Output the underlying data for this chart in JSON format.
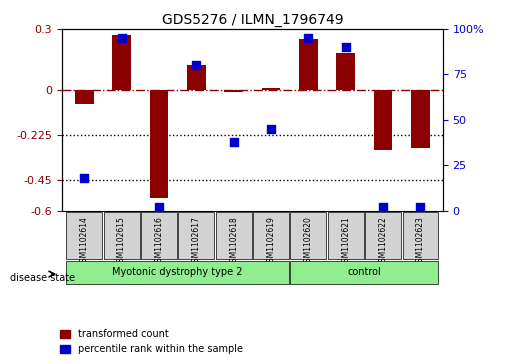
{
  "title": "GDS5276 / ILMN_1796749",
  "samples": [
    "GSM1102614",
    "GSM1102615",
    "GSM1102616",
    "GSM1102617",
    "GSM1102618",
    "GSM1102619",
    "GSM1102620",
    "GSM1102621",
    "GSM1102622",
    "GSM1102623"
  ],
  "red_values": [
    -0.07,
    0.27,
    -0.54,
    0.12,
    -0.01,
    0.01,
    0.25,
    0.18,
    -0.3,
    -0.29
  ],
  "blue_values": [
    18,
    95,
    2,
    80,
    38,
    45,
    95,
    90,
    2,
    2
  ],
  "groups": [
    {
      "label": "Myotonic dystrophy type 2",
      "start": 0,
      "end": 6,
      "color": "#90EE90"
    },
    {
      "label": "control",
      "start": 6,
      "end": 10,
      "color": "#90EE90"
    }
  ],
  "ylim_left": [
    -0.6,
    0.3
  ],
  "ylim_right": [
    0,
    100
  ],
  "yticks_left": [
    -0.6,
    -0.45,
    -0.225,
    0.0,
    0.3
  ],
  "ytick_labels_left": [
    "-0.6",
    "-0.45",
    "-0.225",
    "0",
    "0.3"
  ],
  "yticks_right": [
    0,
    25,
    50,
    75,
    100
  ],
  "ytick_labels_right": [
    "0",
    "25",
    "50",
    "75",
    "100%"
  ],
  "hline_y": 0.0,
  "dotted_lines": [
    -0.225,
    -0.45
  ],
  "red_color": "#8B0000",
  "blue_color": "#0000CD",
  "bar_width": 0.5,
  "legend_items": [
    {
      "label": "transformed count",
      "color": "#8B0000",
      "marker": "s"
    },
    {
      "label": "percentile rank within the sample",
      "color": "#0000CD",
      "marker": "s"
    }
  ],
  "disease_state_label": "disease state",
  "xlabel_color": "#555555",
  "group_box_color": "#D3D3D3"
}
